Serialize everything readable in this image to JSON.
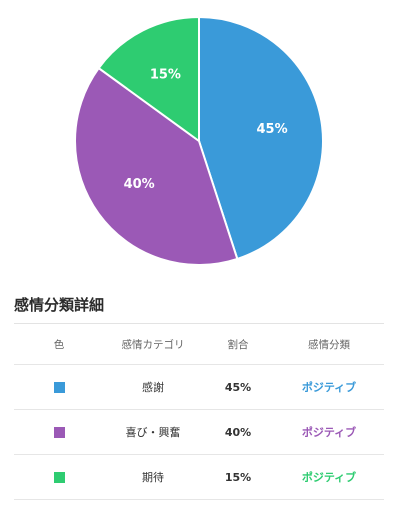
{
  "chart_data": {
    "type": "pie",
    "slices": [
      {
        "label": "感謝",
        "value": 45,
        "display": "45%",
        "color": "#3a9ad9"
      },
      {
        "label": "喜び・興奮",
        "value": 40,
        "display": "40%",
        "color": "#9b59b6"
      },
      {
        "label": "期待",
        "value": 15,
        "display": "15%",
        "color": "#2ecc71"
      }
    ]
  },
  "section": {
    "title": "感情分類詳細"
  },
  "table": {
    "headers": {
      "color": "色",
      "category": "感情カテゴリ",
      "ratio": "割合",
      "classification": "感情分類"
    },
    "rows": [
      {
        "color": "#3a9ad9",
        "category": "感謝",
        "ratio": "45%",
        "classification": "ポジティブ",
        "class_color": "#3a9ad9"
      },
      {
        "color": "#9b59b6",
        "category": "喜び・興奮",
        "ratio": "40%",
        "classification": "ポジティブ",
        "class_color": "#9b59b6"
      },
      {
        "color": "#2ecc71",
        "category": "期待",
        "ratio": "15%",
        "classification": "ポジティブ",
        "class_color": "#2ecc71"
      }
    ]
  }
}
